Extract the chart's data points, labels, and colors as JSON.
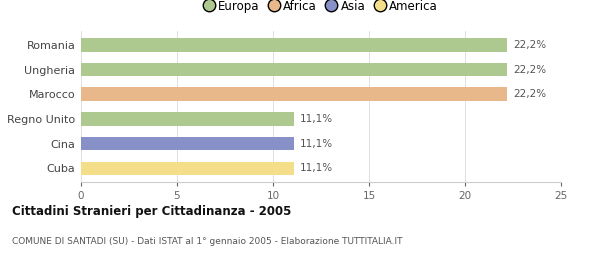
{
  "categories": [
    "Romania",
    "Ungheria",
    "Marocco",
    "Regno Unito",
    "Cina",
    "Cuba"
  ],
  "values": [
    22.2,
    22.2,
    22.2,
    11.1,
    11.1,
    11.1
  ],
  "bar_colors": [
    "#adc990",
    "#adc990",
    "#e8b88a",
    "#adc990",
    "#8890c8",
    "#f5de8a"
  ],
  "labels": [
    "22,2%",
    "22,2%",
    "22,2%",
    "11,1%",
    "11,1%",
    "11,1%"
  ],
  "legend_labels": [
    "Europa",
    "Africa",
    "Asia",
    "America"
  ],
  "legend_colors": [
    "#adc990",
    "#e8b88a",
    "#8890c8",
    "#f5de8a"
  ],
  "title": "Cittadini Stranieri per Cittadinanza - 2005",
  "subtitle": "COMUNE DI SANTADI (SU) - Dati ISTAT al 1° gennaio 2005 - Elaborazione TUTTITALIA.IT",
  "xlim": [
    0,
    25
  ],
  "xticks": [
    0,
    5,
    10,
    15,
    20,
    25
  ],
  "background_color": "#ffffff",
  "bar_height": 0.55
}
